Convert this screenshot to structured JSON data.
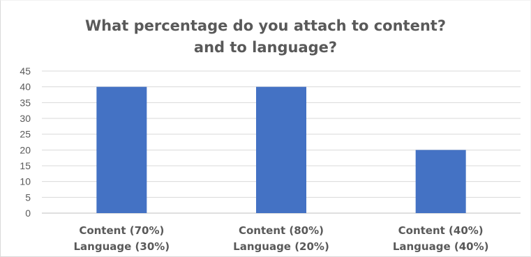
{
  "chart_data": {
    "type": "bar",
    "title_lines": [
      "What percentage do you attach to content?",
      "and to language?"
    ],
    "categories": [
      [
        "Content (70%)",
        "Language (30%)"
      ],
      [
        "Content (80%)",
        "Language (20%)"
      ],
      [
        "Content (40%)",
        "Language (40%)"
      ]
    ],
    "values": [
      40,
      40,
      20
    ],
    "ylim": [
      0,
      45
    ],
    "yticks": [
      0,
      5,
      10,
      15,
      20,
      25,
      30,
      35,
      40,
      45
    ],
    "grid": true,
    "legend": false,
    "bar_color": "#4472c4",
    "grid_color": "#d9d9d9"
  }
}
